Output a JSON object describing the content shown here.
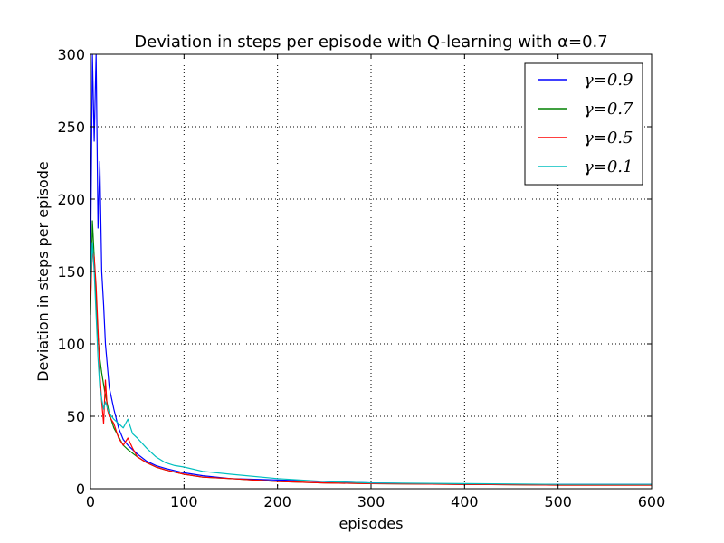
{
  "chart_data": {
    "type": "line",
    "title": "Deviation in steps per episode with Q-learning with α=0.7",
    "xlabel": "episodes",
    "ylabel": "Deviation in steps per episode",
    "xlim": [
      0,
      600
    ],
    "ylim": [
      0,
      300
    ],
    "x_ticks": [
      "0",
      "100",
      "200",
      "300",
      "400",
      "500",
      "600"
    ],
    "y_ticks": [
      "0",
      "50",
      "100",
      "150",
      "200",
      "250",
      "300"
    ],
    "grid": true,
    "legend_position": "top-right",
    "series": [
      {
        "name": "γ=0.9",
        "color": "#0000ff",
        "points": [
          [
            0,
            150
          ],
          [
            2,
            300
          ],
          [
            4,
            240
          ],
          [
            6,
            300
          ],
          [
            8,
            180
          ],
          [
            10,
            226
          ],
          [
            12,
            150
          ],
          [
            14,
            127
          ],
          [
            16,
            100
          ],
          [
            18,
            85
          ],
          [
            20,
            70
          ],
          [
            25,
            55
          ],
          [
            30,
            42
          ],
          [
            35,
            34
          ],
          [
            40,
            30
          ],
          [
            50,
            24
          ],
          [
            60,
            19
          ],
          [
            70,
            16
          ],
          [
            80,
            14
          ],
          [
            100,
            11
          ],
          [
            120,
            9
          ],
          [
            150,
            7
          ],
          [
            200,
            6
          ],
          [
            250,
            5
          ],
          [
            300,
            4
          ],
          [
            350,
            3.5
          ],
          [
            400,
            3
          ],
          [
            500,
            3
          ],
          [
            600,
            3
          ]
        ]
      },
      {
        "name": "γ=0.7",
        "color": "#008000",
        "points": [
          [
            0,
            120
          ],
          [
            2,
            185
          ],
          [
            4,
            160
          ],
          [
            6,
            130
          ],
          [
            8,
            105
          ],
          [
            10,
            90
          ],
          [
            12,
            80
          ],
          [
            15,
            68
          ],
          [
            20,
            52
          ],
          [
            25,
            42
          ],
          [
            30,
            36
          ],
          [
            35,
            30
          ],
          [
            40,
            27
          ],
          [
            50,
            22
          ],
          [
            60,
            18
          ],
          [
            70,
            15
          ],
          [
            80,
            13
          ],
          [
            100,
            10
          ],
          [
            120,
            8
          ],
          [
            150,
            7
          ],
          [
            200,
            5
          ],
          [
            250,
            4
          ],
          [
            300,
            3.5
          ],
          [
            400,
            3
          ],
          [
            500,
            2.5
          ],
          [
            600,
            2.5
          ]
        ]
      },
      {
        "name": "γ=0.5",
        "color": "#ff0000",
        "points": [
          [
            0,
            130
          ],
          [
            2,
            165
          ],
          [
            4,
            160
          ],
          [
            6,
            140
          ],
          [
            8,
            110
          ],
          [
            10,
            80
          ],
          [
            12,
            60
          ],
          [
            14,
            45
          ],
          [
            16,
            75
          ],
          [
            18,
            55
          ],
          [
            20,
            50
          ],
          [
            25,
            45
          ],
          [
            30,
            35
          ],
          [
            35,
            30
          ],
          [
            40,
            35
          ],
          [
            45,
            28
          ],
          [
            50,
            22
          ],
          [
            60,
            18
          ],
          [
            70,
            15
          ],
          [
            80,
            13
          ],
          [
            100,
            10
          ],
          [
            120,
            8
          ],
          [
            150,
            7
          ],
          [
            200,
            5
          ],
          [
            250,
            4
          ],
          [
            300,
            3.5
          ],
          [
            400,
            3
          ],
          [
            500,
            2.5
          ],
          [
            600,
            2.5
          ]
        ]
      },
      {
        "name": "γ=0.1",
        "color": "#00bfbf",
        "points": [
          [
            0,
            140
          ],
          [
            2,
            170
          ],
          [
            4,
            150
          ],
          [
            6,
            120
          ],
          [
            8,
            90
          ],
          [
            10,
            70
          ],
          [
            12,
            62
          ],
          [
            14,
            55
          ],
          [
            16,
            60
          ],
          [
            20,
            52
          ],
          [
            25,
            48
          ],
          [
            30,
            45
          ],
          [
            35,
            42
          ],
          [
            40,
            48
          ],
          [
            45,
            38
          ],
          [
            50,
            35
          ],
          [
            60,
            28
          ],
          [
            70,
            22
          ],
          [
            80,
            18
          ],
          [
            90,
            16
          ],
          [
            100,
            15
          ],
          [
            120,
            12
          ],
          [
            150,
            10
          ],
          [
            200,
            7
          ],
          [
            250,
            5
          ],
          [
            300,
            4
          ],
          [
            400,
            3.5
          ],
          [
            500,
            3
          ],
          [
            600,
            3
          ]
        ]
      }
    ]
  }
}
